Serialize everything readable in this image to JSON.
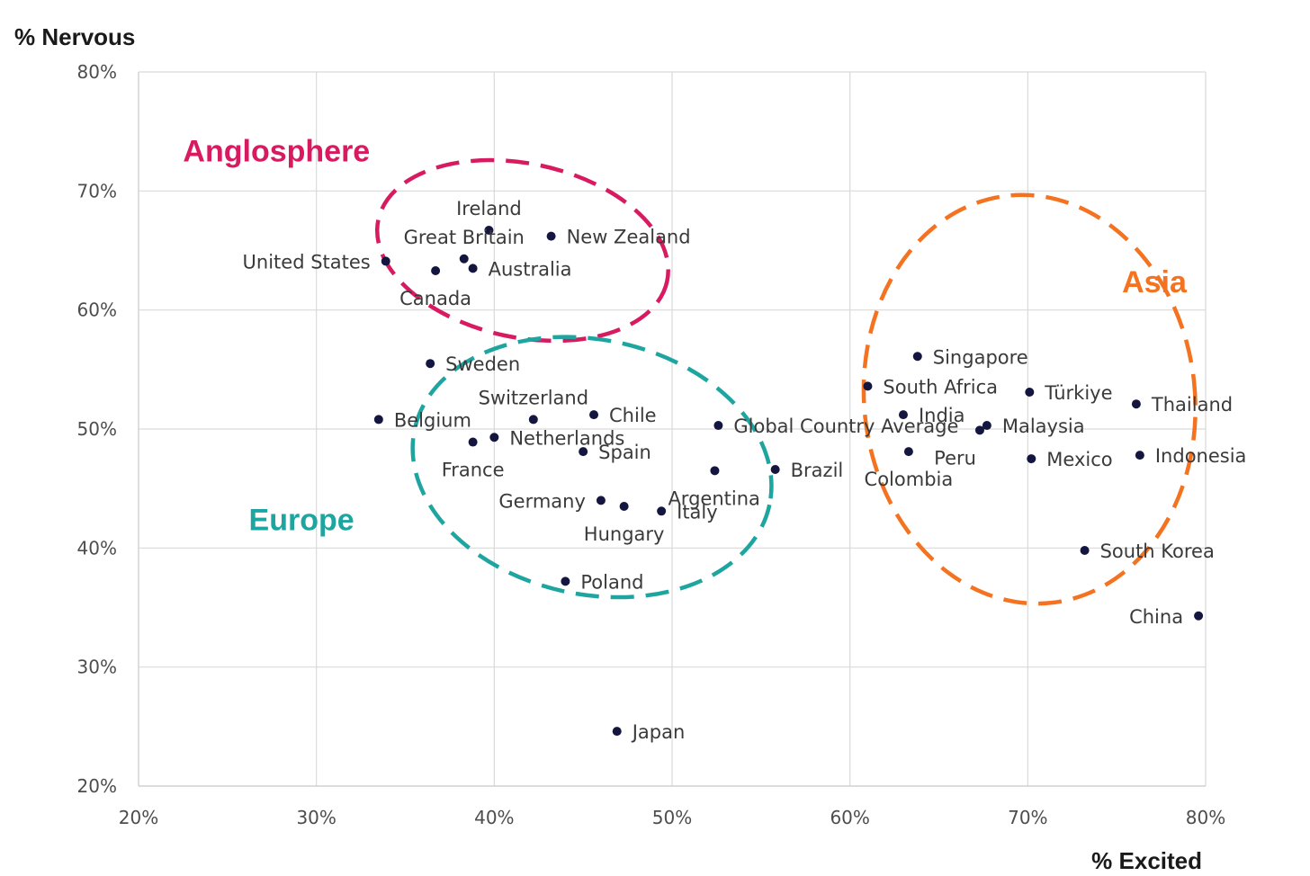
{
  "chart_data": {
    "type": "scatter",
    "ylabel": "% Nervous",
    "xlabel": "% Excited",
    "xlim": [
      0.2,
      0.8
    ],
    "ylim": [
      0.2,
      0.8
    ],
    "x_ticks": [
      "20%",
      "30%",
      "40%",
      "50%",
      "60%",
      "70%",
      "80%"
    ],
    "y_ticks": [
      "20%",
      "30%",
      "40%",
      "50%",
      "60%",
      "70%",
      "80%"
    ],
    "grid": true,
    "point_color": "#14163f",
    "points": [
      {
        "label": "Ireland",
        "x": 0.397,
        "y": 0.667,
        "pos": "above"
      },
      {
        "label": "New Zealand",
        "x": 0.432,
        "y": 0.662,
        "pos": "right"
      },
      {
        "label": "Great Britain",
        "x": 0.383,
        "y": 0.643,
        "pos": "above"
      },
      {
        "label": "United States",
        "x": 0.339,
        "y": 0.641,
        "pos": "left"
      },
      {
        "label": "Australia",
        "x": 0.388,
        "y": 0.635,
        "pos": "right"
      },
      {
        "label": "Canada",
        "x": 0.367,
        "y": 0.633,
        "pos": "below"
      },
      {
        "label": "Sweden",
        "x": 0.364,
        "y": 0.555,
        "pos": "right"
      },
      {
        "label": "Belgium",
        "x": 0.335,
        "y": 0.508,
        "pos": "right"
      },
      {
        "label": "Switzerland",
        "x": 0.422,
        "y": 0.508,
        "pos": "above"
      },
      {
        "label": "Chile",
        "x": 0.456,
        "y": 0.512,
        "pos": "right"
      },
      {
        "label": "Netherlands",
        "x": 0.4,
        "y": 0.493,
        "pos": "right"
      },
      {
        "label": "France",
        "x": 0.388,
        "y": 0.489,
        "pos": "below"
      },
      {
        "label": "Spain",
        "x": 0.45,
        "y": 0.481,
        "pos": "right"
      },
      {
        "label": "Germany",
        "x": 0.46,
        "y": 0.44,
        "pos": "left"
      },
      {
        "label": "Hungary",
        "x": 0.473,
        "y": 0.435,
        "pos": "below"
      },
      {
        "label": "Italy",
        "x": 0.494,
        "y": 0.431,
        "pos": "right"
      },
      {
        "label": "Argentina",
        "x": 0.524,
        "y": 0.465,
        "pos": "belowcenter"
      },
      {
        "label": "Poland",
        "x": 0.44,
        "y": 0.372,
        "pos": "right"
      },
      {
        "label": "Global Country Average",
        "x": 0.526,
        "y": 0.503,
        "pos": "right"
      },
      {
        "label": "Brazil",
        "x": 0.558,
        "y": 0.466,
        "pos": "right"
      },
      {
        "label": "Japan",
        "x": 0.469,
        "y": 0.246,
        "pos": "right"
      },
      {
        "label": "Singapore",
        "x": 0.638,
        "y": 0.561,
        "pos": "right"
      },
      {
        "label": "South Africa",
        "x": 0.61,
        "y": 0.536,
        "pos": "right"
      },
      {
        "label": "India",
        "x": 0.63,
        "y": 0.512,
        "pos": "right"
      },
      {
        "label": "Colombia",
        "x": 0.633,
        "y": 0.481,
        "pos": "below"
      },
      {
        "label": "Malaysia",
        "x": 0.677,
        "y": 0.503,
        "pos": "right"
      },
      {
        "label": "Peru",
        "x": 0.673,
        "y": 0.499,
        "pos": "belowleft"
      },
      {
        "label": "Türkiye",
        "x": 0.701,
        "y": 0.531,
        "pos": "right"
      },
      {
        "label": "Mexico",
        "x": 0.702,
        "y": 0.475,
        "pos": "right"
      },
      {
        "label": "Thailand",
        "x": 0.761,
        "y": 0.521,
        "pos": "right"
      },
      {
        "label": "Indonesia",
        "x": 0.763,
        "y": 0.478,
        "pos": "right"
      },
      {
        "label": "South Korea",
        "x": 0.732,
        "y": 0.398,
        "pos": "right"
      },
      {
        "label": "China",
        "x": 0.796,
        "y": 0.343,
        "pos": "left"
      }
    ],
    "annotations": [
      {
        "label": "Anglosphere",
        "color": "#d81b60",
        "cx": 0.416,
        "cy": 0.65,
        "rx": 0.083,
        "ry": 0.073,
        "angle": 12,
        "lx": 0.225,
        "ly": 0.725
      },
      {
        "label": "Europe",
        "color": "#1fa5a0",
        "cx": 0.455,
        "cy": 0.468,
        "rx": 0.102,
        "ry": 0.107,
        "angle": 12,
        "lx": 0.262,
        "ly": 0.415
      },
      {
        "label": "Asia",
        "color": "#f47321",
        "cx": 0.701,
        "cy": 0.525,
        "rx": 0.093,
        "ry": 0.172,
        "angle": -6,
        "lx": 0.753,
        "ly": 0.615
      }
    ]
  }
}
